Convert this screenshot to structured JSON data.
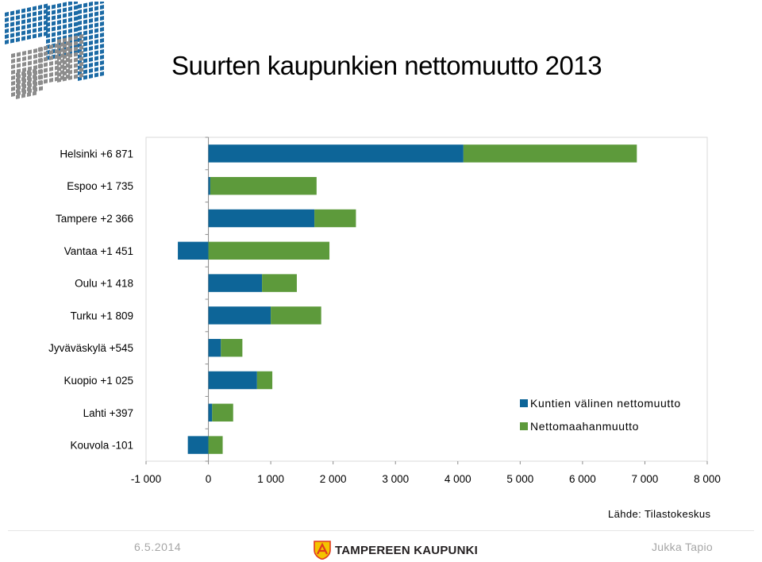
{
  "title": "Suurten kaupunkien nettomuutto 2013",
  "source": "Lähde: Tilastokeskus",
  "footer": {
    "date": "6.5.2014",
    "organization": "TAMPEREEN KAUPUNKI",
    "author": "Jukka Tapio"
  },
  "colors": {
    "series1": "#0d6598",
    "series2": "#5d9a3b",
    "gridline": "#d9d9d9",
    "axis": "#8c8c8c",
    "logo_blue": "#1b6aa5",
    "logo_grey": "#8c8c8c"
  },
  "logo_icon": "tampere-city-crest-icon",
  "chart_data": {
    "type": "bar",
    "orientation": "horizontal",
    "stacked": true,
    "categories": [
      "Helsinki +6 871",
      "Espoo +1 735",
      "Tampere +2 366",
      "Vantaa +1 451",
      "Oulu +1 418",
      "Turku +1 809",
      "Jyväväskylä +545",
      "Kuopio +1 025",
      "Lahti +397",
      "Kouvola -101"
    ],
    "series": [
      {
        "name": "Kuntien välinen nettomuutto",
        "values": [
          4090,
          30,
          1700,
          -490,
          860,
          1000,
          200,
          780,
          60,
          -330
        ]
      },
      {
        "name": "Nettomaahanmuutto",
        "values": [
          2781,
          1705,
          666,
          1941,
          558,
          809,
          345,
          245,
          337,
          229
        ]
      }
    ],
    "x_ticks": [
      "-1 000",
      "0",
      "1 000",
      "2 000",
      "3 000",
      "4 000",
      "5 000",
      "6 000",
      "7 000",
      "8 000"
    ],
    "xlim": [
      -1000,
      8000
    ],
    "grid": false,
    "legend_position": "lower-right"
  }
}
